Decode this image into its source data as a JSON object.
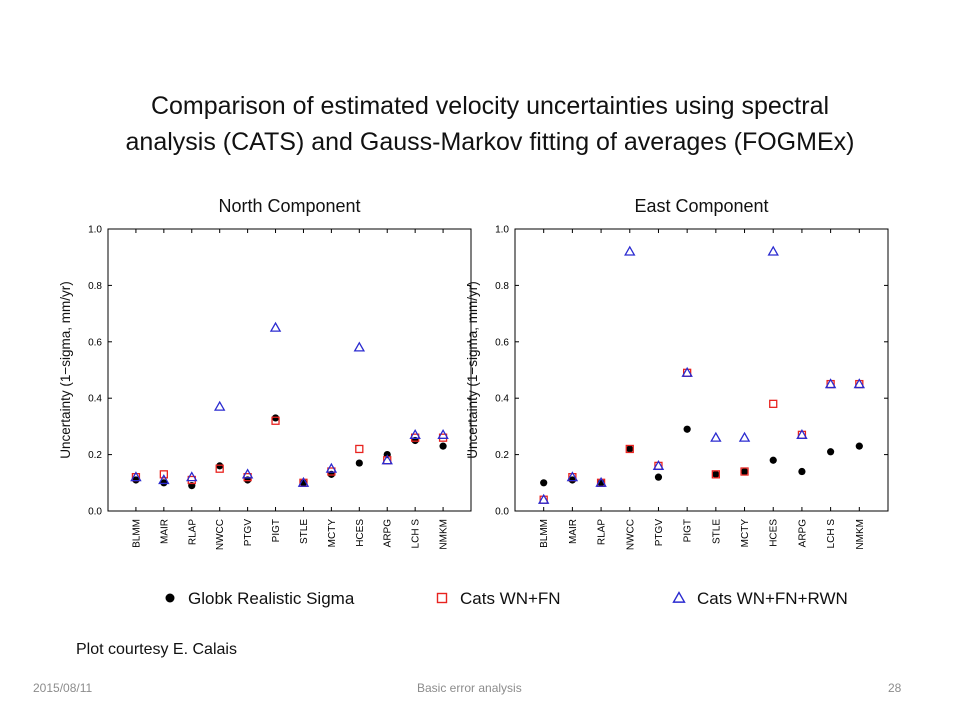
{
  "slide": {
    "title_line1": "Comparison of estimated velocity uncertainties using spectral",
    "title_line2": "analysis (CATS) and Gauss-Markov fitting of averages (FOGMEx)",
    "credit": "Plot courtesy E. Calais",
    "footer_date": "2015/08/11",
    "footer_center": "Basic error analysis",
    "page_number": "28"
  },
  "colors": {
    "globk": "#000000",
    "cats_wn_fn": "#e8231f",
    "cats_wn_fn_rwn": "#2b2bd0"
  },
  "legend": [
    {
      "key": "globk",
      "label": "Globk Realistic Sigma",
      "marker": "filled-circle"
    },
    {
      "key": "cats_wn_fn",
      "label": "Cats WN+FN",
      "marker": "open-square"
    },
    {
      "key": "cats_wn_fn_rwn",
      "label": "Cats WN+FN+RWN",
      "marker": "open-triangle"
    }
  ],
  "chart_data": [
    {
      "type": "scatter",
      "title": "North Component",
      "xlabel": "",
      "ylabel": "Uncertainty (1−sigma, mm/yr)",
      "ylim": [
        0,
        1.0
      ],
      "yticks": [
        "0.0",
        "0.2",
        "0.4",
        "0.6",
        "0.8",
        "1.0"
      ],
      "categories": [
        "BLMM",
        "MAIR",
        "RLAP",
        "NWCC",
        "PTGV",
        "PIGT",
        "STLE",
        "MCTY",
        "HCES",
        "ARPG",
        "LCH S",
        "NMKM"
      ],
      "series": [
        {
          "name": "Globk Realistic Sigma",
          "key": "globk",
          "values": [
            0.11,
            0.1,
            0.09,
            0.16,
            0.11,
            0.33,
            0.1,
            0.13,
            0.17,
            0.2,
            0.25,
            0.23
          ]
        },
        {
          "name": "Cats WN+FN",
          "key": "cats_wn_fn",
          "values": [
            0.12,
            0.13,
            0.11,
            0.15,
            0.12,
            0.32,
            0.1,
            0.14,
            0.22,
            0.18,
            0.26,
            0.26
          ]
        },
        {
          "name": "Cats WN+FN+RWN",
          "key": "cats_wn_fn_rwn",
          "values": [
            0.12,
            0.11,
            0.12,
            0.37,
            0.13,
            0.65,
            0.1,
            0.15,
            0.58,
            0.18,
            0.27,
            0.27
          ]
        }
      ]
    },
    {
      "type": "scatter",
      "title": "East Component",
      "xlabel": "",
      "ylabel": "Uncertainty (1−sigma, mm/yr)",
      "ylim": [
        0,
        1.0
      ],
      "yticks": [
        "0.0",
        "0.2",
        "0.4",
        "0.6",
        "0.8",
        "1.0"
      ],
      "categories": [
        "BLMM",
        "MAIR",
        "RLAP",
        "NWCC",
        "PTGV",
        "PIGT",
        "STLE",
        "MCTY",
        "HCES",
        "ARPG",
        "LCH S",
        "NMKM"
      ],
      "series": [
        {
          "name": "Globk Realistic Sigma",
          "key": "globk",
          "values": [
            0.1,
            0.11,
            0.1,
            0.22,
            0.12,
            0.29,
            0.13,
            0.14,
            0.18,
            0.14,
            0.21,
            0.23
          ]
        },
        {
          "name": "Cats WN+FN",
          "key": "cats_wn_fn",
          "values": [
            0.04,
            0.12,
            0.1,
            0.22,
            0.16,
            0.49,
            0.13,
            0.14,
            0.38,
            0.27,
            0.45,
            0.45
          ]
        },
        {
          "name": "Cats WN+FN+RWN",
          "key": "cats_wn_fn_rwn",
          "values": [
            0.04,
            0.12,
            0.1,
            0.92,
            0.16,
            0.49,
            0.26,
            0.26,
            0.92,
            0.27,
            0.45,
            0.45
          ]
        }
      ]
    }
  ]
}
